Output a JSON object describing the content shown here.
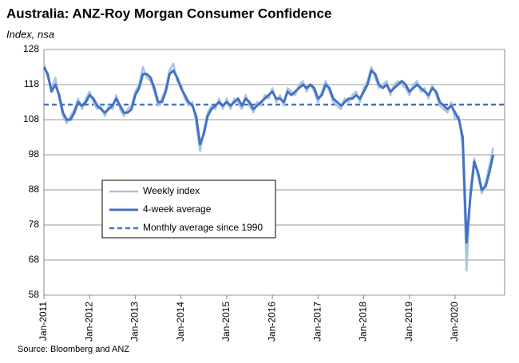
{
  "chart_data": {
    "type": "line",
    "title": "Australia: ANZ-Roy Morgan Consumer Confidence",
    "subtitle": "Index, nsa",
    "source": "Source: Bloomberg and ANZ",
    "categories": [
      "Jan-2011",
      null,
      null,
      null,
      null,
      null,
      null,
      null,
      null,
      null,
      null,
      null,
      "Jan-2012",
      null,
      null,
      null,
      null,
      null,
      null,
      null,
      null,
      null,
      null,
      null,
      "Jan-2013",
      null,
      null,
      null,
      null,
      null,
      null,
      null,
      null,
      null,
      null,
      null,
      "Jan-2014",
      null,
      null,
      null,
      null,
      null,
      null,
      null,
      null,
      null,
      null,
      null,
      "Jan-2015",
      null,
      null,
      null,
      null,
      null,
      null,
      null,
      null,
      null,
      null,
      null,
      "Jan-2016",
      null,
      null,
      null,
      null,
      null,
      null,
      null,
      null,
      null,
      null,
      null,
      "Jan-2017",
      null,
      null,
      null,
      null,
      null,
      null,
      null,
      null,
      null,
      null,
      null,
      "Jan-2018",
      null,
      null,
      null,
      null,
      null,
      null,
      null,
      null,
      null,
      null,
      null,
      "Jan-2019",
      null,
      null,
      null,
      null,
      null,
      null,
      null,
      null,
      null,
      null,
      null,
      "Jan-2020",
      null,
      null,
      null,
      null,
      null,
      null,
      null,
      null,
      null,
      null
    ],
    "series": [
      {
        "name": "Weekly index",
        "color": "#a9c4e4",
        "width": 2.5,
        "values": [
          124,
          120,
          117,
          120,
          114,
          109,
          107,
          109,
          111,
          114,
          111,
          114,
          116,
          113,
          111,
          112,
          109,
          112,
          111,
          115,
          111,
          109,
          111,
          112,
          116,
          118,
          123,
          120,
          119,
          116,
          112,
          114,
          117,
          122,
          124,
          119,
          118,
          114,
          112,
          113,
          107,
          99,
          105,
          110,
          112,
          111,
          114,
          111,
          114,
          111,
          114,
          113,
          111,
          115,
          112,
          110,
          113,
          112,
          115,
          114,
          117,
          113,
          115,
          112,
          117,
          116,
          115,
          118,
          119,
          116,
          118,
          116,
          113,
          116,
          119,
          116,
          113,
          112,
          111,
          114,
          113,
          115,
          116,
          113,
          117,
          119,
          123,
          120,
          117,
          118,
          119,
          115,
          118,
          119,
          118,
          117,
          115,
          118,
          119,
          116,
          117,
          114,
          118,
          115,
          112,
          111,
          110,
          113,
          108,
          109,
          100,
          65,
          88,
          97,
          92,
          87,
          90,
          95,
          100
        ]
      },
      {
        "name": "4-week average",
        "color": "#4472c4",
        "width": 3,
        "values": [
          123,
          121,
          116,
          118,
          115,
          110,
          108,
          108,
          110,
          113,
          112,
          113,
          115,
          114,
          112,
          111,
          110,
          111,
          112,
          114,
          112,
          110,
          110,
          111,
          115,
          117,
          121,
          121,
          120,
          117,
          113,
          113,
          116,
          121,
          122,
          120,
          117,
          115,
          113,
          112,
          109,
          101,
          104,
          109,
          111,
          112,
          113,
          112,
          113,
          112,
          113,
          114,
          112,
          114,
          113,
          111,
          112,
          113,
          114,
          115,
          116,
          114,
          114,
          113,
          116,
          115,
          116,
          117,
          118,
          117,
          118,
          117,
          114,
          115,
          118,
          117,
          114,
          113,
          112,
          113,
          114,
          114,
          115,
          114,
          116,
          118,
          122,
          121,
          118,
          117,
          118,
          116,
          117,
          118,
          119,
          118,
          116,
          117,
          118,
          117,
          116,
          115,
          117,
          116,
          113,
          112,
          111,
          112,
          110,
          108,
          103,
          73,
          86,
          96,
          93,
          88,
          89,
          93,
          98
        ]
      }
    ],
    "reference_line": {
      "name": "Monthly average since 1990",
      "value": 112.3,
      "color": "#4472c4",
      "dashed": true
    },
    "ylim": [
      58,
      128
    ],
    "yticks": [
      58,
      68,
      78,
      88,
      98,
      108,
      118,
      128
    ],
    "grid": true
  }
}
